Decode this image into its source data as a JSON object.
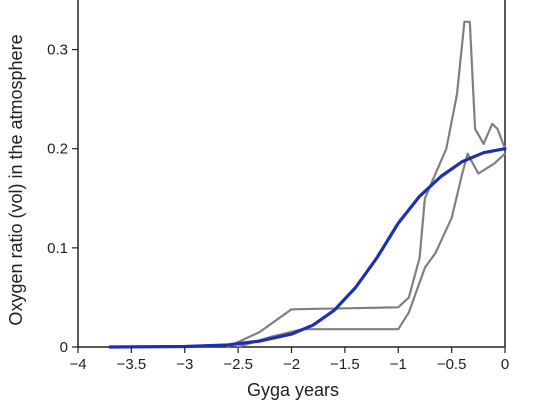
{
  "chart_data": {
    "type": "line",
    "title": "",
    "xlabel": "Gyga years",
    "ylabel": "Oxygen ratio (vol)  in the atmosphere",
    "xlim": [
      -4,
      0
    ],
    "ylim": [
      0,
      0.35
    ],
    "x_ticks": [
      -4,
      -3.5,
      -3,
      -2.5,
      -2,
      -1.5,
      -1,
      -0.5,
      0
    ],
    "x_tick_labels": [
      "−4",
      "−3.5",
      "−3",
      "−2.5",
      "−2",
      "−1.5",
      "−1",
      "−0.5",
      "0"
    ],
    "y_ticks": [
      0,
      0.1,
      0.2,
      0.3
    ],
    "y_tick_labels": [
      "0",
      "0.1",
      "0.2",
      "0.3"
    ],
    "grid": false,
    "legend": "none",
    "colors": {
      "main": "#1f2fb5",
      "bounds": "#808080",
      "axis": "#222222"
    },
    "series": [
      {
        "role": "central estimate",
        "color": "#1f2fb5",
        "points": [
          [
            -3.7,
            0.0
          ],
          [
            -3.0,
            0.0005
          ],
          [
            -2.6,
            0.002
          ],
          [
            -2.3,
            0.006
          ],
          [
            -2.0,
            0.013
          ],
          [
            -1.8,
            0.022
          ],
          [
            -1.6,
            0.037
          ],
          [
            -1.4,
            0.06
          ],
          [
            -1.2,
            0.09
          ],
          [
            -1.0,
            0.125
          ],
          [
            -0.8,
            0.152
          ],
          [
            -0.6,
            0.172
          ],
          [
            -0.4,
            0.187
          ],
          [
            -0.2,
            0.196
          ],
          [
            0.0,
            0.2
          ]
        ]
      },
      {
        "role": "upper bound",
        "color": "#808080",
        "points": [
          [
            -2.6,
            0.0
          ],
          [
            -2.3,
            0.015
          ],
          [
            -2.0,
            0.038
          ],
          [
            -1.5,
            0.039
          ],
          [
            -1.0,
            0.04
          ],
          [
            -0.9,
            0.05
          ],
          [
            -0.8,
            0.09
          ],
          [
            -0.75,
            0.15
          ],
          [
            -0.55,
            0.2
          ],
          [
            -0.45,
            0.255
          ],
          [
            -0.38,
            0.328
          ],
          [
            -0.33,
            0.328
          ],
          [
            -0.28,
            0.22
          ],
          [
            -0.2,
            0.205
          ],
          [
            -0.12,
            0.225
          ],
          [
            -0.07,
            0.22
          ],
          [
            0.0,
            0.2
          ]
        ]
      },
      {
        "role": "lower bound",
        "color": "#808080",
        "points": [
          [
            -2.5,
            0.0
          ],
          [
            -2.2,
            0.01
          ],
          [
            -1.9,
            0.018
          ],
          [
            -1.5,
            0.018
          ],
          [
            -1.0,
            0.018
          ],
          [
            -0.9,
            0.035
          ],
          [
            -0.75,
            0.08
          ],
          [
            -0.65,
            0.095
          ],
          [
            -0.5,
            0.13
          ],
          [
            -0.4,
            0.175
          ],
          [
            -0.35,
            0.195
          ],
          [
            -0.25,
            0.175
          ],
          [
            -0.1,
            0.185
          ],
          [
            0.0,
            0.195
          ]
        ]
      }
    ]
  }
}
